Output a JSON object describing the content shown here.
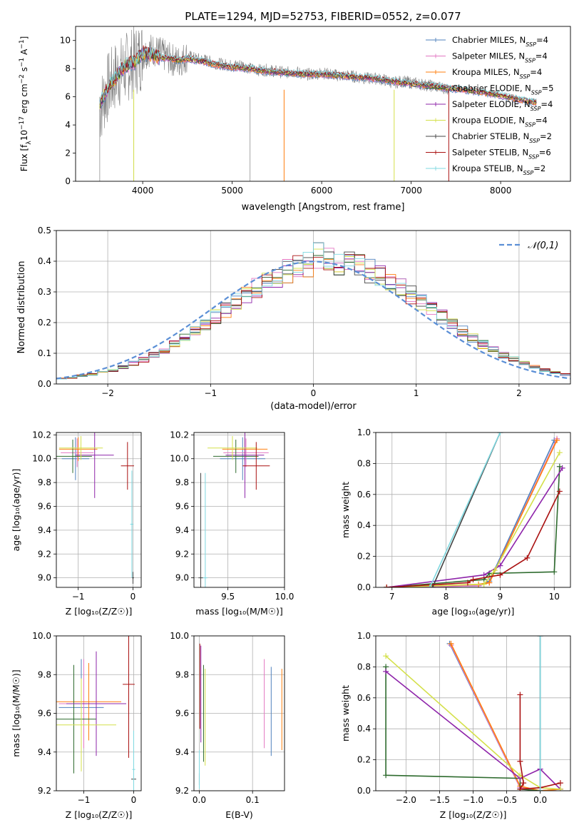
{
  "chart_data": [
    {
      "type": "line",
      "title": "PLATE=1294, MJD=52753, FIBERID=0552, z=0.077",
      "xlabel": "wavelength [Angstrom, rest frame]",
      "ylabel": "Flux [f_λ 10^-17 erg cm^-2 s^-1 A^-1]",
      "xlim": [
        3250,
        8780
      ],
      "ylim": [
        0,
        11
      ],
      "xticks": [
        4000,
        5000,
        6000,
        7000,
        8000
      ],
      "yticks": [
        0,
        2,
        4,
        6,
        8,
        10
      ],
      "grid": false,
      "legend_position": "top-right",
      "legend": [
        {
          "label": "Chabrier MILES, N_SSP=4",
          "color": "#4f81bd"
        },
        {
          "label": "Salpeter MILES, N_SSP=4",
          "color": "#e377c2"
        },
        {
          "label": "Kroupa MILES, N_SSP=4",
          "color": "#ff7f0e"
        },
        {
          "label": "Chabrier ELODIE, N_SSP=5",
          "color": "#2e6b2e"
        },
        {
          "label": "Salpeter ELODIE, N_SSP=4",
          "color": "#8e24aa"
        },
        {
          "label": "Kroupa ELODIE, N_SSP=4",
          "color": "#d4e04a"
        },
        {
          "label": "Chabrier STELIB, N_SSP=2",
          "color": "#444444"
        },
        {
          "label": "Salpeter STELIB, N_SSP=6",
          "color": "#aa1111"
        },
        {
          "label": "Kroupa STELIB, N_SSP=2",
          "color": "#7fd8e0"
        }
      ],
      "data_spectrum": {
        "x": [
          3520,
          3600,
          3700,
          3800,
          3900,
          4000,
          4100,
          4200,
          4300,
          4400,
          4500,
          4600,
          4700,
          4800,
          4900,
          5000,
          5100,
          5200,
          5300,
          5400,
          5500,
          5600,
          5700,
          5800,
          5900,
          6000,
          6100,
          6200,
          6300,
          6400,
          6500,
          6600,
          6700,
          6800,
          6900,
          7000,
          7100,
          7200,
          7300,
          7400
        ],
        "y": [
          5.0,
          6.5,
          7.5,
          8.0,
          8.5,
          9.0,
          9.4,
          9.1,
          8.7,
          8.5,
          8.9,
          8.7,
          8.6,
          8.4,
          8.3,
          8.2,
          8.3,
          8.0,
          7.9,
          7.9,
          7.8,
          7.7,
          7.8,
          7.6,
          7.6,
          7.7,
          7.6,
          7.5,
          7.5,
          7.4,
          7.3,
          7.3,
          7.2,
          7.0,
          7.1,
          7.0,
          6.9,
          6.8,
          6.7,
          6.6
        ]
      },
      "model_spectrum": {
        "x": [
          3520,
          3600,
          3700,
          3800,
          3900,
          4000,
          4100,
          4200,
          4300,
          4400,
          4500,
          4600,
          4700,
          4800,
          4900,
          5000,
          5200,
          5400,
          5600,
          5800,
          6000,
          6200,
          6400,
          6600,
          6800,
          7000,
          7200,
          7400,
          7600,
          7800,
          8000,
          8200,
          8400
        ],
        "y": [
          5.5,
          6.5,
          7.4,
          8.2,
          8.4,
          9.1,
          9.0,
          8.8,
          8.7,
          8.6,
          8.7,
          8.6,
          8.5,
          8.3,
          8.2,
          8.1,
          8.0,
          7.8,
          7.7,
          7.6,
          7.6,
          7.5,
          7.4,
          7.3,
          7.1,
          6.9,
          6.8,
          6.6,
          6.5,
          6.3,
          6.1,
          5.8,
          5.6
        ]
      }
    },
    {
      "type": "line",
      "title": "",
      "xlabel": "(data-model)/error",
      "ylabel": "Normed distribution",
      "xlim": [
        -2.5,
        2.5
      ],
      "ylim": [
        0,
        0.5
      ],
      "xticks": [
        -2,
        -1,
        0,
        1,
        2
      ],
      "yticks": [
        0.0,
        0.1,
        0.2,
        0.3,
        0.4,
        0.5
      ],
      "grid": true,
      "legend_position": "top-right",
      "legend": [
        {
          "label": "𝒩(0,1)",
          "color": "#5b8fd6",
          "dashed": true
        }
      ],
      "hist_bin_width": 0.1,
      "histogram_base": [
        0.018,
        0.02,
        0.027,
        0.031,
        0.037,
        0.045,
        0.055,
        0.067,
        0.08,
        0.094,
        0.111,
        0.129,
        0.149,
        0.171,
        0.194,
        0.218,
        0.242,
        0.266,
        0.29,
        0.312,
        0.333,
        0.352,
        0.368,
        0.381,
        0.391,
        0.397,
        0.399,
        0.397,
        0.391,
        0.381,
        0.368,
        0.352,
        0.333,
        0.312,
        0.29,
        0.266,
        0.242,
        0.218,
        0.194,
        0.171,
        0.149,
        0.129,
        0.111,
        0.094,
        0.08,
        0.067,
        0.055,
        0.045,
        0.037,
        0.031
      ],
      "series": [
        {
          "name": "Chabrier MILES, N_SSP=4",
          "color": "#4f81bd"
        },
        {
          "name": "Salpeter MILES, N_SSP=4",
          "color": "#e377c2"
        },
        {
          "name": "Kroupa MILES, N_SSP=4",
          "color": "#ff7f0e"
        },
        {
          "name": "Chabrier ELODIE, N_SSP=5",
          "color": "#2e6b2e"
        },
        {
          "name": "Salpeter ELODIE, N_SSP=4",
          "color": "#8e24aa"
        },
        {
          "name": "Kroupa ELODIE, N_SSP=4",
          "color": "#d4e04a"
        },
        {
          "name": "Chabrier STELIB, N_SSP=2",
          "color": "#444444"
        },
        {
          "name": "Salpeter STELIB, N_SSP=6",
          "color": "#aa1111"
        },
        {
          "name": "Kroupa STELIB, N_SSP=2",
          "color": "#7fd8e0"
        }
      ]
    },
    {
      "type": "scatter",
      "title": "",
      "xlabel": "Z [log10(Z/Z☉)]",
      "ylabel": "age [log10(age/yr)]",
      "xlim": [
        -1.4,
        0.15
      ],
      "ylim": [
        8.92,
        10.22
      ],
      "xticks": [
        -1,
        0
      ],
      "yticks": [
        9.0,
        9.2,
        9.4,
        9.6,
        9.8,
        10.0,
        10.2
      ],
      "grid": true,
      "points": [
        {
          "x": -1.05,
          "y": 10.0,
          "xerr": 0.25,
          "yerr": 0.18,
          "color": "#4f81bd"
        },
        {
          "x": -1.02,
          "y": 10.05,
          "xerr": 0.3,
          "yerr": 0.12,
          "color": "#e377c2"
        },
        {
          "x": -1.0,
          "y": 10.08,
          "xerr": 0.35,
          "yerr": 0.1,
          "color": "#ff7f0e"
        },
        {
          "x": -1.1,
          "y": 10.02,
          "xerr": 0.35,
          "yerr": 0.14,
          "color": "#2e6b2e"
        },
        {
          "x": -0.7,
          "y": 10.03,
          "xerr": 0.35,
          "yerr": 0.36,
          "color": "#8e24aa"
        },
        {
          "x": -0.95,
          "y": 10.09,
          "xerr": 0.4,
          "yerr": 0.1,
          "color": "#d4e04a"
        },
        {
          "x": 0.0,
          "y": 9.0,
          "xerr": 0.02,
          "yerr": 0.05,
          "color": "#444444"
        },
        {
          "x": -0.1,
          "y": 9.94,
          "xerr": 0.12,
          "yerr": 0.2,
          "color": "#aa1111"
        },
        {
          "x": -0.02,
          "y": 9.45,
          "xerr": 0.03,
          "yerr": 0.45,
          "color": "#7fd8e0"
        }
      ]
    },
    {
      "type": "scatter",
      "title": "",
      "xlabel": "mass [log10(M/M☉)]",
      "ylabel": "",
      "xlim": [
        9.2,
        10.0
      ],
      "ylim": [
        8.92,
        10.22
      ],
      "xticks": [
        9.5,
        10.0
      ],
      "yticks": [
        9.0,
        9.2,
        9.4,
        9.6,
        9.8,
        10.0,
        10.2
      ],
      "grid": true,
      "points": [
        {
          "x": 9.63,
          "y": 10.0,
          "xerr": 0.2,
          "yerr": 0.18,
          "color": "#4f81bd"
        },
        {
          "x": 9.66,
          "y": 10.05,
          "xerr": 0.2,
          "yerr": 0.12,
          "color": "#e377c2"
        },
        {
          "x": 9.65,
          "y": 10.08,
          "xerr": 0.2,
          "yerr": 0.1,
          "color": "#ff7f0e"
        },
        {
          "x": 9.57,
          "y": 10.02,
          "xerr": 0.2,
          "yerr": 0.14,
          "color": "#2e6b2e"
        },
        {
          "x": 9.65,
          "y": 10.03,
          "xerr": 0.17,
          "yerr": 0.36,
          "color": "#8e24aa"
        },
        {
          "x": 9.54,
          "y": 10.09,
          "xerr": 0.22,
          "yerr": 0.1,
          "color": "#d4e04a"
        },
        {
          "x": 9.26,
          "y": 9.0,
          "xerr": 0.02,
          "yerr": 0.88,
          "color": "#444444"
        },
        {
          "x": 9.75,
          "y": 9.94,
          "xerr": 0.12,
          "yerr": 0.2,
          "color": "#aa1111"
        },
        {
          "x": 9.3,
          "y": 9.0,
          "xerr": 0.02,
          "yerr": 0.88,
          "color": "#7fd8e0"
        }
      ]
    },
    {
      "type": "line",
      "title": "",
      "xlabel": "age [log10(age/yr)]",
      "ylabel": "mass weight",
      "xlim": [
        6.7,
        10.3
      ],
      "ylim": [
        0,
        1
      ],
      "xticks": [
        7,
        8,
        9,
        10
      ],
      "yticks": [
        0.0,
        0.2,
        0.4,
        0.6,
        0.8,
        1.0
      ],
      "grid": true,
      "series": [
        {
          "name": "Chabrier MILES, N_SSP=4",
          "color": "#4f81bd",
          "x": [
            6.9,
            8.6,
            8.8,
            10.0
          ],
          "y": [
            0.0,
            0.01,
            0.04,
            0.95
          ]
        },
        {
          "name": "Salpeter MILES, N_SSP=4",
          "color": "#e377c2",
          "x": [
            6.9,
            8.6,
            8.8,
            10.05
          ],
          "y": [
            0.0,
            0.01,
            0.03,
            0.96
          ]
        },
        {
          "name": "Kroupa MILES, N_SSP=4",
          "color": "#ff7f0e",
          "x": [
            6.9,
            8.6,
            8.8,
            10.05
          ],
          "y": [
            0.0,
            0.02,
            0.03,
            0.95
          ]
        },
        {
          "name": "Chabrier ELODIE, N_SSP=5",
          "color": "#2e6b2e",
          "x": [
            6.9,
            8.7,
            8.8,
            10.0,
            10.1
          ],
          "y": [
            0.0,
            0.05,
            0.09,
            0.1,
            0.78
          ]
        },
        {
          "name": "Salpeter ELODIE, N_SSP=4",
          "color": "#8e24aa",
          "x": [
            6.9,
            8.7,
            9.0,
            10.15
          ],
          "y": [
            0.0,
            0.08,
            0.14,
            0.77
          ]
        },
        {
          "name": "Kroupa ELODIE, N_SSP=4",
          "color": "#d4e04a",
          "x": [
            6.9,
            8.7,
            8.9,
            10.1
          ],
          "y": [
            0.0,
            0.02,
            0.11,
            0.87
          ]
        },
        {
          "name": "Chabrier STELIB, N_SSP=2",
          "color": "#444444",
          "x": [
            7.75,
            9.0
          ],
          "y": [
            0.0,
            1.0
          ]
        },
        {
          "name": "Salpeter STELIB, N_SSP=6",
          "color": "#aa1111",
          "x": [
            6.9,
            8.4,
            8.5,
            9.0,
            9.5,
            10.1
          ],
          "y": [
            0.0,
            0.03,
            0.05,
            0.08,
            0.19,
            0.62
          ]
        },
        {
          "name": "Kroupa STELIB, N_SSP=2",
          "color": "#7fd8e0",
          "x": [
            7.7,
            9.0
          ],
          "y": [
            0.0,
            1.0
          ]
        }
      ]
    },
    {
      "type": "scatter",
      "title": "",
      "xlabel": "Z [log10(Z/Z☉)]",
      "ylabel": "mass [log10(M/M☉)]",
      "xlim": [
        -1.55,
        0.15
      ],
      "ylim": [
        9.2,
        10.0
      ],
      "xticks": [
        -1,
        0
      ],
      "yticks": [
        9.2,
        9.4,
        9.6,
        9.8,
        10.0
      ],
      "grid": true,
      "points": [
        {
          "x": -1.05,
          "y": 9.63,
          "xerr": 0.45,
          "yerr": 0.25,
          "color": "#4f81bd"
        },
        {
          "x": -1.0,
          "y": 9.65,
          "xerr": 0.5,
          "yerr": 0.23,
          "color": "#e377c2"
        },
        {
          "x": -0.9,
          "y": 9.66,
          "xerr": 0.65,
          "yerr": 0.2,
          "color": "#ff7f0e"
        },
        {
          "x": -1.2,
          "y": 9.57,
          "xerr": 0.45,
          "yerr": 0.28,
          "color": "#2e6b2e"
        },
        {
          "x": -0.75,
          "y": 9.65,
          "xerr": 0.6,
          "yerr": 0.27,
          "color": "#8e24aa"
        },
        {
          "x": -1.05,
          "y": 9.54,
          "xerr": 0.7,
          "yerr": 0.24,
          "color": "#d4e04a"
        },
        {
          "x": 0.0,
          "y": 9.26,
          "xerr": 0.05,
          "yerr": 0.02,
          "color": "#444444"
        },
        {
          "x": -0.1,
          "y": 9.75,
          "xerr": 0.12,
          "yerr": 0.38,
          "color": "#aa1111"
        },
        {
          "x": 0.0,
          "y": 9.31,
          "xerr": 0.03,
          "yerr": 0.2,
          "color": "#7fd8e0"
        }
      ]
    },
    {
      "type": "scatter",
      "title": "",
      "xlabel": "E(B-V)",
      "ylabel": "",
      "xlim": [
        -0.01,
        0.16
      ],
      "ylim": [
        9.2,
        10.0
      ],
      "xticks": [
        0.0,
        0.1
      ],
      "yticks": [
        9.2,
        9.4,
        9.6,
        9.8,
        10.0
      ],
      "grid": true,
      "points": [
        {
          "x": 0.135,
          "y": 9.61,
          "xerr": 0.0,
          "yerr": 0.23,
          "color": "#4f81bd"
        },
        {
          "x": 0.122,
          "y": 9.65,
          "xerr": 0.0,
          "yerr": 0.23,
          "color": "#e377c2"
        },
        {
          "x": 0.155,
          "y": 9.62,
          "xerr": 0.0,
          "yerr": 0.21,
          "color": "#ff7f0e"
        },
        {
          "x": 0.008,
          "y": 9.6,
          "xerr": 0.0,
          "yerr": 0.25,
          "color": "#2e6b2e"
        },
        {
          "x": 0.003,
          "y": 9.7,
          "xerr": 0.0,
          "yerr": 0.25,
          "color": "#8e24aa"
        },
        {
          "x": 0.011,
          "y": 9.58,
          "xerr": 0.0,
          "yerr": 0.25,
          "color": "#d4e04a"
        },
        {
          "x": 0.0,
          "y": 9.26,
          "xerr": 0.0,
          "yerr": 0.03,
          "color": "#444444"
        },
        {
          "x": 0.001,
          "y": 9.74,
          "xerr": 0.0,
          "yerr": 0.22,
          "color": "#aa1111"
        },
        {
          "x": 0.0,
          "y": 9.31,
          "xerr": 0.0,
          "yerr": 0.1,
          "color": "#7fd8e0"
        }
      ]
    },
    {
      "type": "line",
      "title": "",
      "xlabel": "Z [log10(Z/Z☉)]",
      "ylabel": "mass weight",
      "xlim": [
        -2.45,
        0.45
      ],
      "ylim": [
        0,
        1
      ],
      "xticks": [
        -2.0,
        -1.5,
        -1.0,
        -0.5,
        0.0
      ],
      "yticks": [
        0.0,
        0.2,
        0.4,
        0.6,
        0.8,
        1.0
      ],
      "grid": true,
      "series": [
        {
          "name": "Chabrier MILES, N_SSP=4",
          "color": "#4f81bd",
          "x": [
            -1.35,
            -0.3,
            0.0,
            0.3
          ],
          "y": [
            0.95,
            0.02,
            0.0,
            0.01
          ]
        },
        {
          "name": "Salpeter MILES, N_SSP=4",
          "color": "#e377c2",
          "x": [
            -1.33,
            -0.3,
            0.0,
            0.3
          ],
          "y": [
            0.94,
            0.02,
            0.0,
            0.01
          ]
        },
        {
          "name": "Kroupa MILES, N_SSP=4",
          "color": "#ff7f0e",
          "x": [
            -1.33,
            -0.3,
            0.0,
            0.3
          ],
          "y": [
            0.95,
            0.03,
            0.0,
            0.01
          ]
        },
        {
          "name": "Chabrier ELODIE, N_SSP=5",
          "color": "#2e6b2e",
          "x": [
            -2.3,
            -2.3,
            -0.3,
            -0.3,
            0.0
          ],
          "y": [
            0.8,
            0.1,
            0.08,
            0.01,
            0.0
          ]
        },
        {
          "name": "Salpeter ELODIE, N_SSP=4",
          "color": "#8e24aa",
          "x": [
            -2.3,
            -0.3,
            0.0,
            0.3
          ],
          "y": [
            0.77,
            0.08,
            0.14,
            0.01
          ]
        },
        {
          "name": "Kroupa ELODIE, N_SSP=4",
          "color": "#d4e04a",
          "x": [
            -2.3,
            -0.3,
            0.0,
            0.3
          ],
          "y": [
            0.87,
            0.1,
            0.02,
            0.01
          ]
        },
        {
          "name": "Chabrier STELIB, N_SSP=2",
          "color": "#444444",
          "x": [
            0.0,
            0.0
          ],
          "y": [
            0.0,
            1.0
          ]
        },
        {
          "name": "Salpeter STELIB, N_SSP=6",
          "color": "#aa1111",
          "x": [
            -0.3,
            -0.3,
            -0.25,
            -0.3,
            0.0,
            0.3
          ],
          "y": [
            0.62,
            0.19,
            0.05,
            0.01,
            0.02,
            0.05
          ]
        },
        {
          "name": "Kroupa STELIB, N_SSP=2",
          "color": "#7fd8e0",
          "x": [
            0.0,
            0.0
          ],
          "y": [
            0.0,
            1.0
          ]
        }
      ]
    }
  ]
}
